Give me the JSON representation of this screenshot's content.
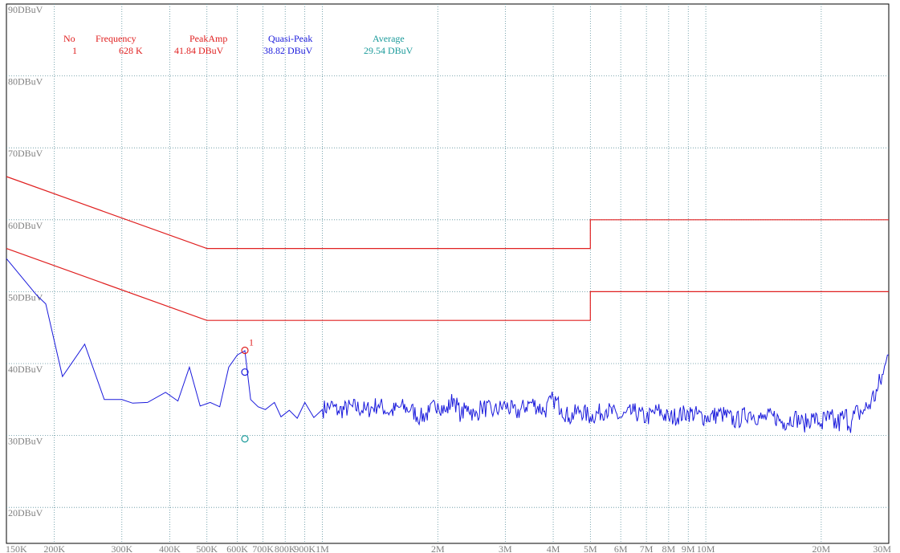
{
  "chart_data": {
    "type": "line",
    "x_scale": "log",
    "xlim": [
      150000,
      30000000
    ],
    "ylim": [
      15,
      90
    ],
    "grid": true,
    "y_ticks": [
      {
        "value": 90,
        "label": "90DBuV"
      },
      {
        "value": 80,
        "label": "80DBuV"
      },
      {
        "value": 70,
        "label": "70DBuV"
      },
      {
        "value": 60,
        "label": "60DBuV"
      },
      {
        "value": 50,
        "label": "50DBuV"
      },
      {
        "value": 40,
        "label": "40DBuV"
      },
      {
        "value": 30,
        "label": "30DBuV"
      },
      {
        "value": 20,
        "label": "20DBuV"
      }
    ],
    "x_ticks": [
      {
        "value": 150000,
        "label": "150K"
      },
      {
        "value": 200000,
        "label": "200K"
      },
      {
        "value": 300000,
        "label": "300K"
      },
      {
        "value": 400000,
        "label": "400K"
      },
      {
        "value": 500000,
        "label": "500K"
      },
      {
        "value": 600000,
        "label": "600K"
      },
      {
        "value": 700000,
        "label": "700K"
      },
      {
        "value": 800000,
        "label": "800K"
      },
      {
        "value": 900000,
        "label": "900K"
      },
      {
        "value": 1000000,
        "label": "1M"
      },
      {
        "value": 2000000,
        "label": "2M"
      },
      {
        "value": 3000000,
        "label": "3M"
      },
      {
        "value": 4000000,
        "label": "4M"
      },
      {
        "value": 5000000,
        "label": "5M"
      },
      {
        "value": 6000000,
        "label": "6M"
      },
      {
        "value": 7000000,
        "label": "7M"
      },
      {
        "value": 8000000,
        "label": "8M"
      },
      {
        "value": 9000000,
        "label": "9M"
      },
      {
        "value": 10000000,
        "label": "10M"
      },
      {
        "value": 20000000,
        "label": "20M"
      },
      {
        "value": 30000000,
        "label": "30M"
      }
    ],
    "limit_lines": [
      {
        "color": "#e02020",
        "points": [
          [
            150000,
            66
          ],
          [
            500000,
            56
          ],
          [
            5000000,
            56
          ],
          [
            5000000,
            60
          ],
          [
            30000000,
            60
          ]
        ]
      },
      {
        "color": "#e02020",
        "points": [
          [
            150000,
            56
          ],
          [
            500000,
            46
          ],
          [
            5000000,
            46
          ],
          [
            5000000,
            50
          ],
          [
            30000000,
            50
          ]
        ]
      }
    ],
    "trace": {
      "color": "#1a1adc",
      "points": [
        [
          150000,
          54.6
        ],
        [
          180000,
          49.5
        ],
        [
          190000,
          48.3
        ],
        [
          210000,
          38.2
        ],
        [
          240000,
          42.7
        ],
        [
          270000,
          35.0
        ],
        [
          300000,
          35.0
        ],
        [
          320000,
          34.5
        ],
        [
          350000,
          34.6
        ],
        [
          390000,
          36.0
        ],
        [
          420000,
          34.8
        ],
        [
          450000,
          39.5
        ],
        [
          480000,
          34.1
        ],
        [
          510000,
          34.6
        ],
        [
          540000,
          34.0
        ],
        [
          570000,
          39.5
        ],
        [
          600000,
          41.2
        ],
        [
          628000,
          41.8
        ],
        [
          650000,
          35.0
        ],
        [
          680000,
          34.0
        ],
        [
          710000,
          33.6
        ],
        [
          750000,
          34.6
        ],
        [
          780000,
          32.6
        ],
        [
          820000,
          33.5
        ],
        [
          860000,
          32.4
        ],
        [
          900000,
          34.6
        ],
        [
          950000,
          32.5
        ],
        [
          1000000,
          33.6
        ],
        [
          1050000,
          34.2
        ],
        [
          1100000,
          33.4
        ],
        [
          1200000,
          34.0
        ],
        [
          1300000,
          33.5
        ],
        [
          1400000,
          34.3
        ],
        [
          1500000,
          33.2
        ],
        [
          1600000,
          34.0
        ],
        [
          1700000,
          33.6
        ],
        [
          1800000,
          32.5
        ],
        [
          1900000,
          33.2
        ],
        [
          2000000,
          34.5
        ],
        [
          2100000,
          33.3
        ],
        [
          2200000,
          35.2
        ],
        [
          2300000,
          32.8
        ],
        [
          2400000,
          34.1
        ],
        [
          2500000,
          32.6
        ],
        [
          2600000,
          34.0
        ],
        [
          2800000,
          33.3
        ],
        [
          3000000,
          34.2
        ],
        [
          3200000,
          33.1
        ],
        [
          3500000,
          34.6
        ],
        [
          3800000,
          33.4
        ],
        [
          4000000,
          35.1
        ],
        [
          4200000,
          33.8
        ],
        [
          4400000,
          32.5
        ],
        [
          4700000,
          33.5
        ],
        [
          5000000,
          32.6
        ],
        [
          5500000,
          33.6
        ],
        [
          6000000,
          32.5
        ],
        [
          6500000,
          33.3
        ],
        [
          7000000,
          32.4
        ],
        [
          7500000,
          33.5
        ],
        [
          8000000,
          32.4
        ],
        [
          9000000,
          33.2
        ],
        [
          10000000,
          32.5
        ],
        [
          11000000,
          33.0
        ],
        [
          12000000,
          32.0
        ],
        [
          13000000,
          33.2
        ],
        [
          14000000,
          32.3
        ],
        [
          15000000,
          32.7
        ],
        [
          16000000,
          31.8
        ],
        [
          17000000,
          32.6
        ],
        [
          18000000,
          31.6
        ],
        [
          19000000,
          32.5
        ],
        [
          20000000,
          31.7
        ],
        [
          21000000,
          32.2
        ],
        [
          22000000,
          31.5
        ],
        [
          23000000,
          32.6
        ],
        [
          24000000,
          32.0
        ],
        [
          25000000,
          33.2
        ],
        [
          26000000,
          33.5
        ],
        [
          27000000,
          34.8
        ],
        [
          28000000,
          36.2
        ],
        [
          29000000,
          38.5
        ],
        [
          29500000,
          40.2
        ],
        [
          30000000,
          41.2
        ]
      ]
    },
    "marker": {
      "no": "1",
      "freq_hz": 628000,
      "peak": 41.84,
      "quasi_peak": 38.82,
      "average": 29.54,
      "colors": {
        "peak": "#e02020",
        "quasi_peak": "#1a1adc",
        "average": "#1a9a9a"
      }
    },
    "readout": {
      "headers": {
        "no": "No",
        "frequency": "Frequency",
        "peak": "PeakAmp",
        "quasi_peak": "Quasi-Peak",
        "average": "Average"
      },
      "values": {
        "no": "1",
        "frequency": "628 K",
        "peak": "41.84 DBuV",
        "quasi_peak": "38.82 DBuV",
        "average": "29.54 DBuV"
      }
    }
  }
}
